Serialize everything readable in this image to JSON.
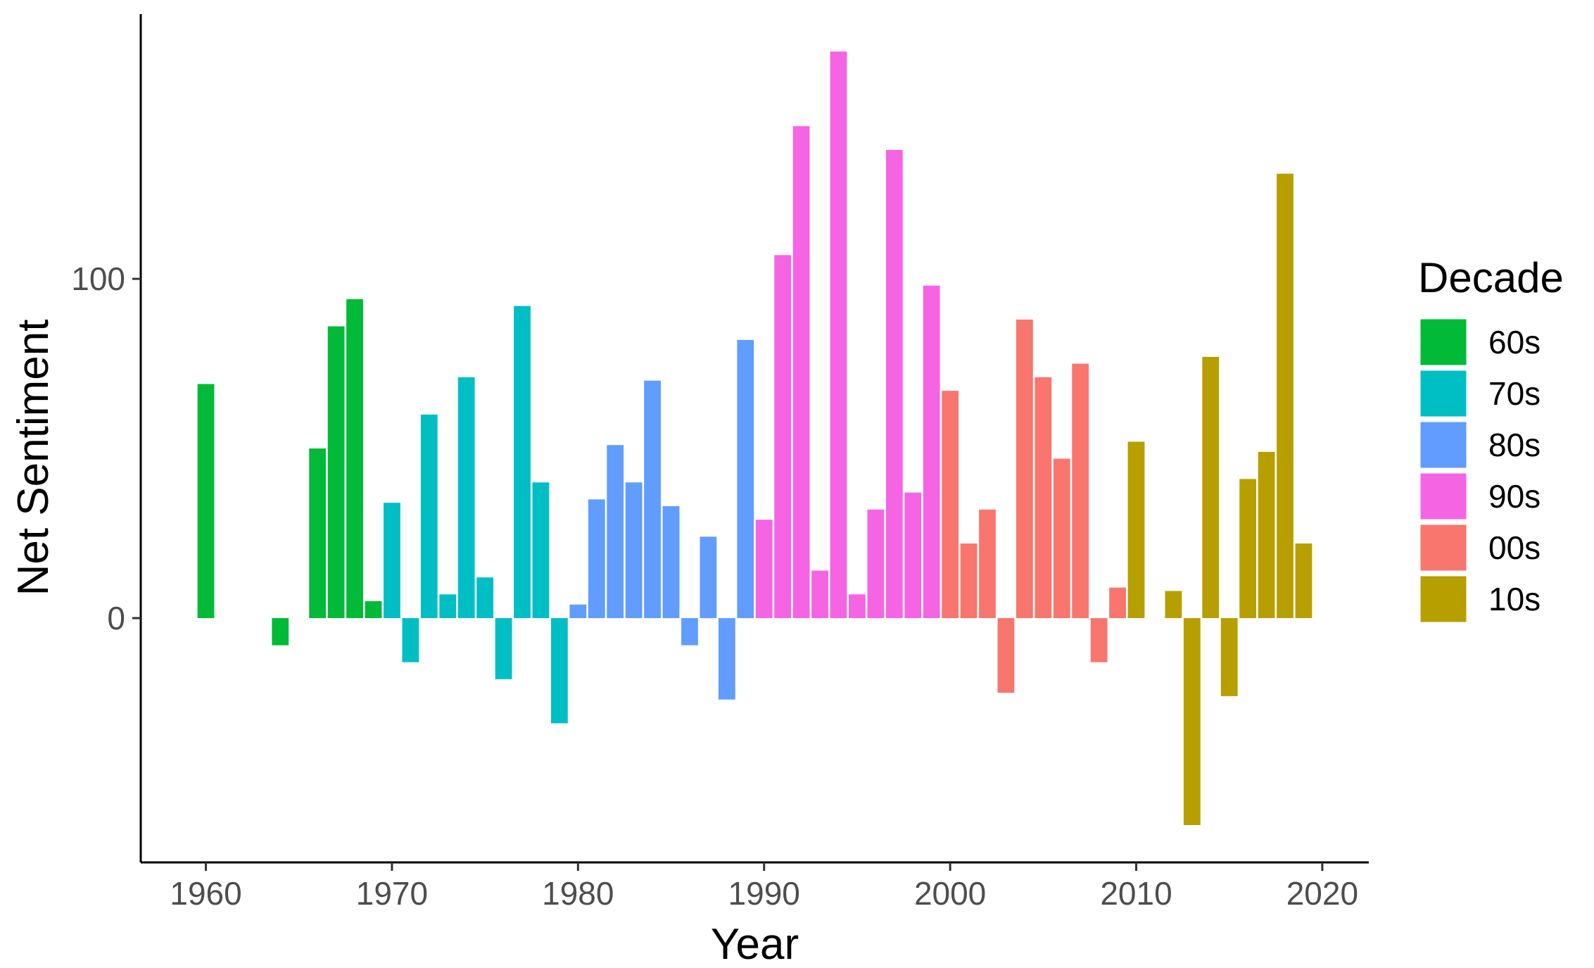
{
  "chart_data": {
    "type": "bar",
    "xlabel": "Year",
    "ylabel": "Net Sentiment",
    "xlim": [
      1956.5,
      2022.5
    ],
    "ylim": [
      -72,
      177
    ],
    "x_ticks": [
      1960,
      1970,
      1980,
      1990,
      2000,
      2010,
      2020
    ],
    "y_ticks": [
      0,
      100
    ],
    "grid": false,
    "legend": {
      "title": "Decade",
      "position": "right",
      "entries": [
        {
          "label": "60s",
          "color": "#00BA38"
        },
        {
          "label": "70s",
          "color": "#00BFC4"
        },
        {
          "label": "80s",
          "color": "#619CFF"
        },
        {
          "label": "90s",
          "color": "#F564E3"
        },
        {
          "label": "00s",
          "color": "#F8766D"
        },
        {
          "label": "10s",
          "color": "#B79F00"
        }
      ]
    },
    "series": [
      {
        "name": "60s",
        "color": "#00BA38",
        "points": [
          {
            "x": 1960,
            "y": 69
          },
          {
            "x": 1964,
            "y": -8
          },
          {
            "x": 1966,
            "y": 50
          },
          {
            "x": 1967,
            "y": 86
          },
          {
            "x": 1968,
            "y": 94
          },
          {
            "x": 1969,
            "y": 5
          }
        ]
      },
      {
        "name": "70s",
        "color": "#00BFC4",
        "points": [
          {
            "x": 1970,
            "y": 34
          },
          {
            "x": 1971,
            "y": -13
          },
          {
            "x": 1972,
            "y": 60
          },
          {
            "x": 1973,
            "y": 7
          },
          {
            "x": 1974,
            "y": 71
          },
          {
            "x": 1975,
            "y": 12
          },
          {
            "x": 1976,
            "y": -18
          },
          {
            "x": 1977,
            "y": 92
          },
          {
            "x": 1978,
            "y": 40
          },
          {
            "x": 1979,
            "y": -31
          }
        ]
      },
      {
        "name": "80s",
        "color": "#619CFF",
        "points": [
          {
            "x": 1980,
            "y": 4
          },
          {
            "x": 1981,
            "y": 35
          },
          {
            "x": 1982,
            "y": 51
          },
          {
            "x": 1983,
            "y": 40
          },
          {
            "x": 1984,
            "y": 70
          },
          {
            "x": 1985,
            "y": 33
          },
          {
            "x": 1986,
            "y": -8
          },
          {
            "x": 1987,
            "y": 24
          },
          {
            "x": 1988,
            "y": -24
          },
          {
            "x": 1989,
            "y": 82
          }
        ]
      },
      {
        "name": "90s",
        "color": "#F564E3",
        "points": [
          {
            "x": 1990,
            "y": 29
          },
          {
            "x": 1991,
            "y": 107
          },
          {
            "x": 1992,
            "y": 145
          },
          {
            "x": 1993,
            "y": 14
          },
          {
            "x": 1994,
            "y": 167
          },
          {
            "x": 1995,
            "y": 7
          },
          {
            "x": 1996,
            "y": 32
          },
          {
            "x": 1997,
            "y": 138
          },
          {
            "x": 1998,
            "y": 37
          },
          {
            "x": 1999,
            "y": 98
          }
        ]
      },
      {
        "name": "00s",
        "color": "#F8766D",
        "points": [
          {
            "x": 2000,
            "y": 67
          },
          {
            "x": 2001,
            "y": 22
          },
          {
            "x": 2002,
            "y": 32
          },
          {
            "x": 2003,
            "y": -22
          },
          {
            "x": 2004,
            "y": 88
          },
          {
            "x": 2005,
            "y": 71
          },
          {
            "x": 2006,
            "y": 47
          },
          {
            "x": 2007,
            "y": 75
          },
          {
            "x": 2008,
            "y": -13
          },
          {
            "x": 2009,
            "y": 9
          }
        ]
      },
      {
        "name": "10s",
        "color": "#B79F00",
        "points": [
          {
            "x": 2010,
            "y": 52
          },
          {
            "x": 2012,
            "y": 8
          },
          {
            "x": 2013,
            "y": -61
          },
          {
            "x": 2014,
            "y": 77
          },
          {
            "x": 2015,
            "y": -23
          },
          {
            "x": 2016,
            "y": 41
          },
          {
            "x": 2017,
            "y": 49
          },
          {
            "x": 2018,
            "y": 131
          },
          {
            "x": 2019,
            "y": 22
          }
        ]
      }
    ]
  }
}
